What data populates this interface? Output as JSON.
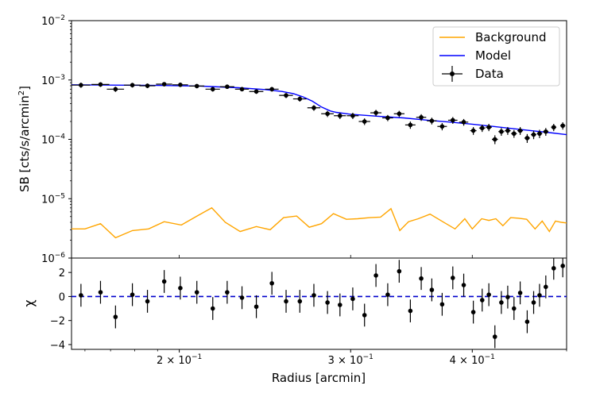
{
  "chart_data": [
    {
      "type": "line",
      "panel": "top",
      "yscale": "log",
      "xscale": "log",
      "xlim": [
        0.155,
        0.5
      ],
      "ylim_exp": [
        -6,
        -2
      ],
      "ylabel_prefix": "SB [cts/s/arcmin",
      "ylabel_sup": "2",
      "ylabel_suffix": "]",
      "yticks": [
        {
          "exp": -6,
          "label": "10",
          "sup": "−6"
        },
        {
          "exp": -5,
          "label": "10",
          "sup": "−5"
        },
        {
          "exp": -4,
          "label": "10",
          "sup": "−4"
        },
        {
          "exp": -3,
          "label": "10",
          "sup": "−3"
        },
        {
          "exp": -2,
          "label": "10",
          "sup": "−2"
        }
      ],
      "legend": {
        "position": "top-right",
        "entries": [
          {
            "label": "Background",
            "color": "#ffa500",
            "kind": "line"
          },
          {
            "label": "Model",
            "color": "#0000ff",
            "kind": "line"
          },
          {
            "label": "Data",
            "color": "#000000",
            "kind": "errorbar"
          }
        ]
      },
      "series": [
        {
          "name": "Data",
          "color": "#000000",
          "x": [
            0.1585,
            0.166,
            0.172,
            0.179,
            0.1855,
            0.193,
            0.2005,
            0.2085,
            0.2165,
            0.224,
            0.232,
            0.24,
            0.249,
            0.2575,
            0.266,
            0.275,
            0.284,
            0.2925,
            0.3015,
            0.31,
            0.3185,
            0.3275,
            0.3365,
            0.3455,
            0.3545,
            0.3635,
            0.3725,
            0.382,
            0.392,
            0.401,
            0.4095,
            0.416,
            0.422,
            0.4285,
            0.435,
            0.4415,
            0.448,
            0.4555,
            0.4625,
            0.469,
            0.476,
            0.485,
            0.4955
          ],
          "y": [
            0.00082,
            0.00084,
            0.0007,
            0.00082,
            0.0008,
            0.00085,
            0.00083,
            0.00079,
            0.0007,
            0.00077,
            0.0007,
            0.00064,
            0.0007,
            0.00055,
            0.00048,
            0.00034,
            0.00027,
            0.00025,
            0.00025,
            0.0002,
            0.00028,
            0.00023,
            0.00027,
            0.000175,
            0.000235,
            0.000205,
            0.000165,
            0.00021,
            0.000195,
            0.00014,
            0.000155,
            0.00016,
            0.0001,
            0.000135,
            0.00014,
            0.000125,
            0.00014,
            0.000105,
            0.00012,
            0.000125,
            0.000135,
            0.00016,
            0.00017
          ],
          "xerr_lo": [
            0.0035,
            0.0035,
            0.0035,
            0.0035,
            0.0035,
            0.0037,
            0.0037,
            0.0037,
            0.0037,
            0.0038,
            0.0038,
            0.004,
            0.004,
            0.0042,
            0.0042,
            0.0042,
            0.0042,
            0.0042,
            0.0042,
            0.0042,
            0.0042,
            0.0042,
            0.0042,
            0.0042,
            0.0042,
            0.0042,
            0.0042,
            0.0042,
            0.0042,
            0.003,
            0.003,
            0.003,
            0.003,
            0.003,
            0.003,
            0.003,
            0.003,
            0.003,
            0.003,
            0.003,
            0.003,
            0.003,
            0.003
          ],
          "yerr_rel": [
            0.1,
            0.09,
            0.1,
            0.09,
            0.09,
            0.08,
            0.08,
            0.08,
            0.09,
            0.08,
            0.08,
            0.09,
            0.09,
            0.1,
            0.1,
            0.11,
            0.12,
            0.12,
            0.12,
            0.13,
            0.12,
            0.12,
            0.12,
            0.14,
            0.13,
            0.13,
            0.14,
            0.13,
            0.13,
            0.15,
            0.14,
            0.14,
            0.17,
            0.15,
            0.15,
            0.15,
            0.15,
            0.17,
            0.16,
            0.16,
            0.15,
            0.14,
            0.14
          ]
        },
        {
          "name": "Model",
          "color": "#0000ff",
          "x": [
            0.155,
            0.17,
            0.19,
            0.21,
            0.23,
            0.245,
            0.255,
            0.262,
            0.268,
            0.274,
            0.28,
            0.286,
            0.29,
            0.3,
            0.32,
            0.34,
            0.36,
            0.38,
            0.4,
            0.42,
            0.44,
            0.46,
            0.48,
            0.5
          ],
          "y": [
            0.00083,
            0.00082,
            0.00081,
            0.00079,
            0.00074,
            0.00069,
            0.00064,
            0.00059,
            0.00052,
            0.00044,
            0.00035,
            0.0003,
            0.000285,
            0.000265,
            0.000245,
            0.00023,
            0.00021,
            0.000195,
            0.00018,
            0.000165,
            0.000152,
            0.00014,
            0.00013,
            0.00012
          ]
        },
        {
          "name": "Background",
          "color": "#ffa500",
          "x": [
            0.155,
            0.16,
            0.166,
            0.172,
            0.179,
            0.186,
            0.193,
            0.201,
            0.209,
            0.216,
            0.223,
            0.231,
            0.24,
            0.248,
            0.256,
            0.264,
            0.272,
            0.28,
            0.288,
            0.297,
            0.305,
            0.314,
            0.322,
            0.33,
            0.337,
            0.344,
            0.352,
            0.362,
            0.373,
            0.384,
            0.393,
            0.4,
            0.409,
            0.416,
            0.423,
            0.43,
            0.438,
            0.446,
            0.455,
            0.464,
            0.472,
            0.48,
            0.487,
            0.494,
            0.5
          ],
          "y": [
            3.1e-06,
            3.1e-06,
            3.8e-06,
            2.2e-06,
            2.9e-06,
            3.1e-06,
            4.1e-06,
            3.6e-06,
            5.2e-06,
            7e-06,
            4e-06,
            2.8e-06,
            3.4e-06,
            3e-06,
            4.8e-06,
            5.1e-06,
            3.3e-06,
            3.8e-06,
            5.6e-06,
            4.5e-06,
            4.6e-06,
            4.8e-06,
            4.9e-06,
            6.8e-06,
            2.9e-06,
            4.1e-06,
            4.6e-06,
            5.5e-06,
            4.1e-06,
            3.1e-06,
            4.6e-06,
            3.1e-06,
            4.6e-06,
            4.3e-06,
            4.6e-06,
            3.5e-06,
            4.8e-06,
            4.7e-06,
            4.5e-06,
            3.1e-06,
            4.2e-06,
            2.8e-06,
            4.2e-06,
            4e-06,
            3.9e-06
          ]
        }
      ]
    },
    {
      "type": "scatter",
      "panel": "bottom",
      "xscale": "log",
      "xlim": [
        0.155,
        0.5
      ],
      "ylim": [
        -4.4,
        3.2
      ],
      "ylabel": "χ",
      "xlabel": "Radius [arcmin]",
      "reference_line": {
        "y": 0,
        "color": "#0000cc",
        "style": "dashed"
      },
      "yticks": [
        {
          "value": 2,
          "label": "2"
        },
        {
          "value": 0,
          "label": "0"
        },
        {
          "value": -2,
          "label": "−2"
        },
        {
          "value": -4,
          "label": "−4"
        }
      ],
      "xticks": [
        {
          "value": 0.2,
          "label": "2 × 10",
          "sup": "−1"
        },
        {
          "value": 0.3,
          "label": "3 × 10",
          "sup": "−1"
        },
        {
          "value": 0.4,
          "label": "4 × 10",
          "sup": "−1"
        }
      ],
      "minor_xticks": [
        0.16,
        0.17,
        0.18,
        0.19,
        0.5
      ],
      "series": [
        {
          "name": "Residuals",
          "color": "#000000",
          "x": [
            0.1585,
            0.166,
            0.172,
            0.179,
            0.1855,
            0.193,
            0.2005,
            0.2085,
            0.2165,
            0.224,
            0.232,
            0.24,
            0.249,
            0.2575,
            0.266,
            0.275,
            0.284,
            0.2925,
            0.3015,
            0.31,
            0.3185,
            0.3275,
            0.3365,
            0.3455,
            0.3545,
            0.3635,
            0.3725,
            0.382,
            0.392,
            0.401,
            0.4095,
            0.416,
            0.422,
            0.4285,
            0.435,
            0.4415,
            0.448,
            0.4555,
            0.4625,
            0.469,
            0.476,
            0.485,
            0.4955
          ],
          "y": [
            0.1,
            0.35,
            -1.7,
            0.15,
            -0.4,
            1.25,
            0.7,
            0.35,
            -1.0,
            0.35,
            -0.1,
            -0.85,
            1.1,
            -0.4,
            -0.4,
            0.1,
            -0.5,
            -0.7,
            -0.2,
            -1.55,
            1.75,
            0.15,
            2.1,
            -1.2,
            1.5,
            0.55,
            -0.65,
            1.55,
            0.95,
            -1.3,
            -0.3,
            0.15,
            -3.35,
            -0.5,
            -0.05,
            -1.0,
            0.3,
            -2.1,
            -0.5,
            0.1,
            0.8,
            2.35,
            2.55
          ],
          "yerr": [
            0.95,
            0.95,
            0.95,
            0.95,
            0.95,
            0.95,
            0.95,
            0.95,
            0.95,
            0.95,
            0.95,
            0.95,
            0.95,
            0.95,
            0.95,
            0.95,
            0.95,
            0.95,
            0.95,
            0.95,
            0.95,
            0.95,
            0.95,
            0.95,
            0.95,
            0.95,
            0.95,
            0.95,
            0.95,
            0.95,
            0.95,
            0.95,
            0.95,
            0.95,
            0.95,
            0.95,
            0.95,
            0.95,
            0.95,
            0.95,
            0.95,
            0.95,
            0.95
          ]
        }
      ]
    }
  ]
}
